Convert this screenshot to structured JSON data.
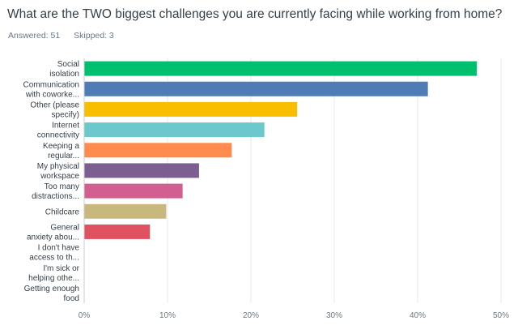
{
  "survey": {
    "question": "What are the TWO biggest challenges you are currently facing while working from home?",
    "answered_label": "Answered: 51",
    "skipped_label": "Skipped: 3"
  },
  "chart_data": {
    "type": "bar",
    "orientation": "horizontal",
    "title": "What are the TWO biggest challenges you are currently facing while working from home?",
    "xlabel": "",
    "ylabel": "",
    "xlim": [
      0,
      50
    ],
    "grid": true,
    "x_ticks": [
      "0%",
      "10%",
      "20%",
      "30%",
      "40%",
      "50%"
    ],
    "categories": [
      [
        "Social",
        "isolation"
      ],
      [
        "Communication",
        "with coworke..."
      ],
      [
        "Other (please",
        "specify)"
      ],
      [
        "Internet",
        "connectivity"
      ],
      [
        "Keeping a",
        "regular..."
      ],
      [
        "My physical",
        "workspace"
      ],
      [
        "Too many",
        "distractions..."
      ],
      [
        "Childcare"
      ],
      [
        "General",
        "anxiety abou..."
      ],
      [
        "I don't have",
        "access to th..."
      ],
      [
        "I'm sick or",
        "helping othe..."
      ],
      [
        "Getting enough",
        "food"
      ]
    ],
    "values": [
      47.06,
      41.18,
      25.49,
      21.57,
      17.65,
      13.73,
      11.76,
      9.8,
      7.84,
      0,
      0,
      0
    ],
    "colors": [
      "#00bf6f",
      "#507cb6",
      "#f9be00",
      "#6bc8cd",
      "#ff8b4f",
      "#7d5e90",
      "#d25f90",
      "#c9b87d",
      "#e05260",
      "#00bf6f",
      "#507cb6",
      "#f9be00"
    ]
  }
}
